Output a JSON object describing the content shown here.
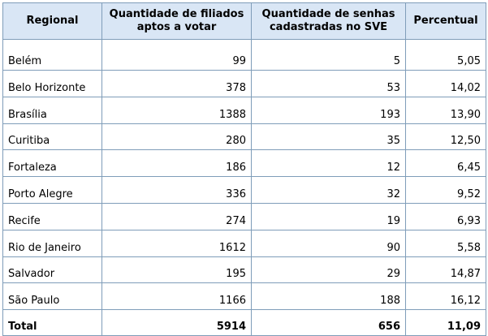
{
  "table": {
    "headers": [
      {
        "line1": "Regional",
        "line2": ""
      },
      {
        "line1": "Quantidade de filiados",
        "line2": "aptos a votar"
      },
      {
        "line1": "Quantidade de senhas",
        "line2": "cadastradas no SVE"
      },
      {
        "line1": "Percentual",
        "line2": ""
      }
    ],
    "rows": [
      {
        "regional": "Belém",
        "filiados": "99",
        "senhas": "5",
        "percentual": "5,05"
      },
      {
        "regional": "Belo Horizonte",
        "filiados": "378",
        "senhas": "53",
        "percentual": "14,02"
      },
      {
        "regional": "Brasília",
        "filiados": "1388",
        "senhas": "193",
        "percentual": "13,90"
      },
      {
        "regional": "Curitiba",
        "filiados": "280",
        "senhas": "35",
        "percentual": "12,50"
      },
      {
        "regional": "Fortaleza",
        "filiados": "186",
        "senhas": "12",
        "percentual": "6,45"
      },
      {
        "regional": "Porto Alegre",
        "filiados": "336",
        "senhas": "32",
        "percentual": "9,52"
      },
      {
        "regional": "Recife",
        "filiados": "274",
        "senhas": "19",
        "percentual": "6,93"
      },
      {
        "regional": "Rio de Janeiro",
        "filiados": "1612",
        "senhas": "90",
        "percentual": "5,58"
      },
      {
        "regional": "Salvador",
        "filiados": "195",
        "senhas": "29",
        "percentual": "14,87"
      },
      {
        "regional": "São Paulo",
        "filiados": "1166",
        "senhas": "188",
        "percentual": "16,12"
      }
    ],
    "total": {
      "regional": "Total",
      "filiados": "5914",
      "senhas": "656",
      "percentual": "11,09"
    }
  },
  "colors": {
    "header_bg": "#d9e6f5",
    "border": "#7f9db9"
  }
}
